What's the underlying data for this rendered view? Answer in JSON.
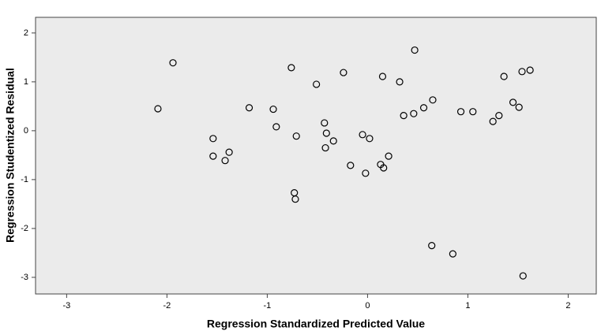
{
  "chart_data": {
    "type": "scatter",
    "xlabel": "Regression Standardized Predicted Value",
    "ylabel": "Regression Studentized Residual",
    "x": [
      -2.09,
      -1.94,
      -1.54,
      -1.54,
      -1.42,
      -1.38,
      -1.18,
      -0.94,
      -0.91,
      -0.76,
      -0.71,
      -0.73,
      -0.72,
      -0.51,
      -0.43,
      -0.41,
      -0.34,
      -0.42,
      -0.24,
      -0.17,
      -0.05,
      0.02,
      -0.02,
      0.13,
      0.16,
      0.15,
      0.21,
      0.32,
      0.36,
      0.47,
      0.46,
      0.56,
      0.65,
      0.64,
      0.85,
      0.93,
      1.05,
      1.25,
      1.31,
      1.36,
      1.45,
      1.51,
      1.54,
      1.62,
      1.55
    ],
    "values": [
      0.45,
      1.39,
      -0.16,
      -0.52,
      -0.61,
      -0.44,
      0.47,
      0.44,
      0.08,
      1.29,
      -0.11,
      -1.27,
      -1.4,
      0.95,
      0.16,
      -0.05,
      -0.21,
      -0.35,
      1.19,
      -0.71,
      -0.08,
      -0.16,
      -0.87,
      -0.69,
      -0.76,
      1.11,
      -0.52,
      1.0,
      0.31,
      1.65,
      0.35,
      0.47,
      0.63,
      -2.35,
      -2.52,
      0.39,
      0.39,
      0.19,
      0.31,
      1.11,
      0.58,
      0.48,
      1.21,
      1.24,
      -2.97
    ],
    "color": "#000000",
    "xlim": [
      -3.31,
      2.28
    ],
    "xticks": [
      -3,
      -2,
      -1,
      0,
      1,
      2
    ],
    "ylim": [
      -3.34,
      2.32
    ],
    "yticks": [
      -3,
      -2,
      -1,
      0,
      1,
      2
    ],
    "grid": false
  }
}
